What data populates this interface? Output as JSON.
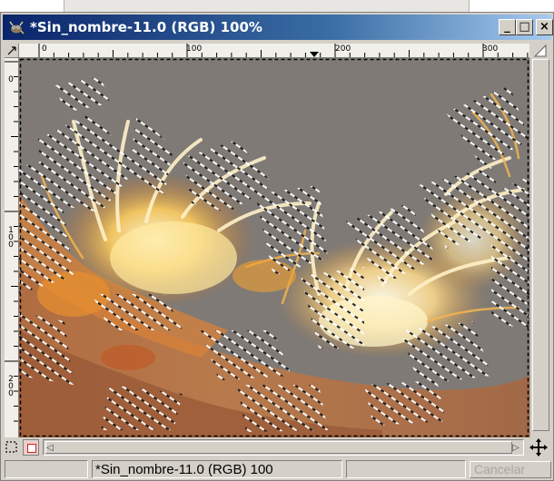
{
  "window": {
    "title": "*Sin_nombre-11.0 (RGB) 100%",
    "controls": {
      "minimize": "_",
      "maximize": "□",
      "close": "×"
    }
  },
  "ruler": {
    "horizontal_labels": [
      "0",
      "100",
      "200",
      "300"
    ],
    "vertical_labels": [
      "0",
      "100",
      "200"
    ]
  },
  "status": {
    "image_info": "*Sin_nombre-11.0 (RGB) 100",
    "cancel_label": "Cancelar"
  },
  "icons": {
    "app": "gimp-wilber-icon",
    "ruler_corner": "pointer-menu-icon",
    "quick_mask": "quick-mask-icon",
    "navigate": "navigate-cross-icon",
    "nav_corner": "zoom-triangle-icon"
  },
  "colors": {
    "titlebar_start": "#0a246a",
    "titlebar_end": "#a6caf0",
    "canvas_background": "#7f7a76",
    "highlight": "#f7e3a0"
  }
}
